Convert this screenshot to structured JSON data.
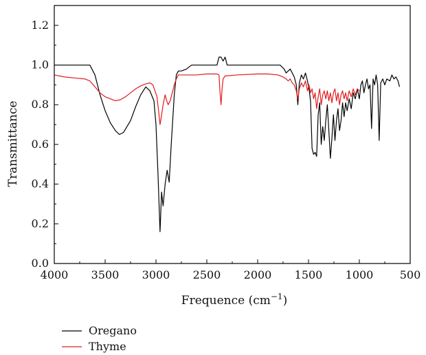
{
  "chart_data": {
    "type": "line",
    "xlabel": "Frequence (cm",
    "xlabel_sup": "−1",
    "xlabel_close": ")",
    "ylabel": "Transmittance",
    "xlim": [
      4000,
      500
    ],
    "ylim": [
      0.0,
      1.3
    ],
    "x_ticks": [
      4000,
      3500,
      3000,
      2500,
      2000,
      1500,
      1000,
      500
    ],
    "y_ticks": [
      0.0,
      0.2,
      0.4,
      0.6,
      0.8,
      1.0,
      1.2
    ],
    "grid": false,
    "legend_position": "bottom-left",
    "series": [
      {
        "name": "Oregano",
        "color": "#000000",
        "points": [
          [
            4000,
            1.0
          ],
          [
            3650,
            1.0
          ],
          [
            3600,
            0.95
          ],
          [
            3550,
            0.85
          ],
          [
            3500,
            0.77
          ],
          [
            3450,
            0.71
          ],
          [
            3400,
            0.67
          ],
          [
            3360,
            0.65
          ],
          [
            3320,
            0.66
          ],
          [
            3250,
            0.72
          ],
          [
            3200,
            0.79
          ],
          [
            3150,
            0.85
          ],
          [
            3100,
            0.89
          ],
          [
            3060,
            0.87
          ],
          [
            3020,
            0.82
          ],
          [
            3000,
            0.7
          ],
          [
            2980,
            0.45
          ],
          [
            2960,
            0.16
          ],
          [
            2945,
            0.36
          ],
          [
            2930,
            0.29
          ],
          [
            2910,
            0.4
          ],
          [
            2890,
            0.47
          ],
          [
            2870,
            0.41
          ],
          [
            2850,
            0.6
          ],
          [
            2820,
            0.85
          ],
          [
            2800,
            0.95
          ],
          [
            2780,
            0.97
          ],
          [
            2750,
            0.97
          ],
          [
            2700,
            0.98
          ],
          [
            2650,
            1.0
          ],
          [
            2400,
            1.0
          ],
          [
            2380,
            1.04
          ],
          [
            2360,
            1.04
          ],
          [
            2340,
            1.02
          ],
          [
            2320,
            1.04
          ],
          [
            2300,
            1.0
          ],
          [
            1780,
            1.0
          ],
          [
            1740,
            0.98
          ],
          [
            1720,
            0.96
          ],
          [
            1700,
            0.97
          ],
          [
            1680,
            0.98
          ],
          [
            1660,
            0.96
          ],
          [
            1640,
            0.94
          ],
          [
            1620,
            0.9
          ],
          [
            1605,
            0.8
          ],
          [
            1590,
            0.91
          ],
          [
            1570,
            0.95
          ],
          [
            1550,
            0.93
          ],
          [
            1530,
            0.96
          ],
          [
            1510,
            0.92
          ],
          [
            1495,
            0.88
          ],
          [
            1480,
            0.82
          ],
          [
            1465,
            0.58
          ],
          [
            1450,
            0.55
          ],
          [
            1435,
            0.56
          ],
          [
            1420,
            0.54
          ],
          [
            1405,
            0.75
          ],
          [
            1390,
            0.81
          ],
          [
            1375,
            0.6
          ],
          [
            1360,
            0.69
          ],
          [
            1345,
            0.62
          ],
          [
            1330,
            0.72
          ],
          [
            1315,
            0.8
          ],
          [
            1300,
            0.67
          ],
          [
            1285,
            0.53
          ],
          [
            1270,
            0.63
          ],
          [
            1255,
            0.75
          ],
          [
            1240,
            0.62
          ],
          [
            1225,
            0.72
          ],
          [
            1210,
            0.78
          ],
          [
            1195,
            0.67
          ],
          [
            1180,
            0.72
          ],
          [
            1165,
            0.81
          ],
          [
            1150,
            0.74
          ],
          [
            1135,
            0.81
          ],
          [
            1120,
            0.77
          ],
          [
            1100,
            0.83
          ],
          [
            1080,
            0.78
          ],
          [
            1060,
            0.86
          ],
          [
            1040,
            0.83
          ],
          [
            1020,
            0.88
          ],
          [
            1000,
            0.83
          ],
          [
            985,
            0.9
          ],
          [
            970,
            0.92
          ],
          [
            955,
            0.86
          ],
          [
            940,
            0.9
          ],
          [
            925,
            0.93
          ],
          [
            910,
            0.88
          ],
          [
            895,
            0.9
          ],
          [
            880,
            0.68
          ],
          [
            865,
            0.93
          ],
          [
            850,
            0.9
          ],
          [
            835,
            0.95
          ],
          [
            820,
            0.9
          ],
          [
            805,
            0.62
          ],
          [
            790,
            0.91
          ],
          [
            770,
            0.93
          ],
          [
            750,
            0.9
          ],
          [
            730,
            0.93
          ],
          [
            700,
            0.92
          ],
          [
            680,
            0.95
          ],
          [
            660,
            0.93
          ],
          [
            640,
            0.94
          ],
          [
            620,
            0.92
          ],
          [
            605,
            0.89
          ]
        ]
      },
      {
        "name": "Thyme",
        "color": "#e0191c",
        "points": [
          [
            4000,
            0.95
          ],
          [
            3900,
            0.94
          ],
          [
            3800,
            0.935
          ],
          [
            3700,
            0.93
          ],
          [
            3650,
            0.92
          ],
          [
            3600,
            0.89
          ],
          [
            3550,
            0.86
          ],
          [
            3500,
            0.84
          ],
          [
            3450,
            0.83
          ],
          [
            3400,
            0.82
          ],
          [
            3350,
            0.825
          ],
          [
            3300,
            0.84
          ],
          [
            3250,
            0.86
          ],
          [
            3200,
            0.88
          ],
          [
            3150,
            0.895
          ],
          [
            3100,
            0.905
          ],
          [
            3060,
            0.91
          ],
          [
            3030,
            0.9
          ],
          [
            3010,
            0.87
          ],
          [
            2990,
            0.84
          ],
          [
            2970,
            0.75
          ],
          [
            2960,
            0.7
          ],
          [
            2950,
            0.73
          ],
          [
            2930,
            0.8
          ],
          [
            2910,
            0.85
          ],
          [
            2895,
            0.82
          ],
          [
            2880,
            0.8
          ],
          [
            2860,
            0.82
          ],
          [
            2840,
            0.86
          ],
          [
            2820,
            0.9
          ],
          [
            2800,
            0.93
          ],
          [
            2780,
            0.95
          ],
          [
            2700,
            0.95
          ],
          [
            2600,
            0.95
          ],
          [
            2500,
            0.955
          ],
          [
            2400,
            0.955
          ],
          [
            2380,
            0.95
          ],
          [
            2370,
            0.86
          ],
          [
            2360,
            0.8
          ],
          [
            2350,
            0.88
          ],
          [
            2340,
            0.93
          ],
          [
            2320,
            0.945
          ],
          [
            2200,
            0.95
          ],
          [
            2000,
            0.955
          ],
          [
            1900,
            0.955
          ],
          [
            1800,
            0.95
          ],
          [
            1750,
            0.94
          ],
          [
            1720,
            0.93
          ],
          [
            1700,
            0.92
          ],
          [
            1680,
            0.93
          ],
          [
            1660,
            0.91
          ],
          [
            1640,
            0.9
          ],
          [
            1620,
            0.87
          ],
          [
            1605,
            0.83
          ],
          [
            1590,
            0.88
          ],
          [
            1570,
            0.91
          ],
          [
            1550,
            0.89
          ],
          [
            1530,
            0.92
          ],
          [
            1510,
            0.87
          ],
          [
            1495,
            0.9
          ],
          [
            1480,
            0.86
          ],
          [
            1465,
            0.88
          ],
          [
            1450,
            0.83
          ],
          [
            1435,
            0.86
          ],
          [
            1420,
            0.78
          ],
          [
            1405,
            0.84
          ],
          [
            1390,
            0.88
          ],
          [
            1375,
            0.8
          ],
          [
            1360,
            0.85
          ],
          [
            1345,
            0.87
          ],
          [
            1330,
            0.83
          ],
          [
            1315,
            0.87
          ],
          [
            1300,
            0.82
          ],
          [
            1285,
            0.86
          ],
          [
            1270,
            0.81
          ],
          [
            1255,
            0.86
          ],
          [
            1240,
            0.88
          ],
          [
            1225,
            0.82
          ],
          [
            1210,
            0.86
          ],
          [
            1195,
            0.8
          ],
          [
            1180,
            0.85
          ],
          [
            1165,
            0.87
          ],
          [
            1150,
            0.83
          ],
          [
            1135,
            0.86
          ],
          [
            1120,
            0.82
          ],
          [
            1100,
            0.87
          ],
          [
            1080,
            0.84
          ],
          [
            1060,
            0.88
          ],
          [
            1040,
            0.85
          ],
          [
            1020,
            0.88
          ],
          [
            1000,
            0.87
          ]
        ]
      }
    ]
  }
}
